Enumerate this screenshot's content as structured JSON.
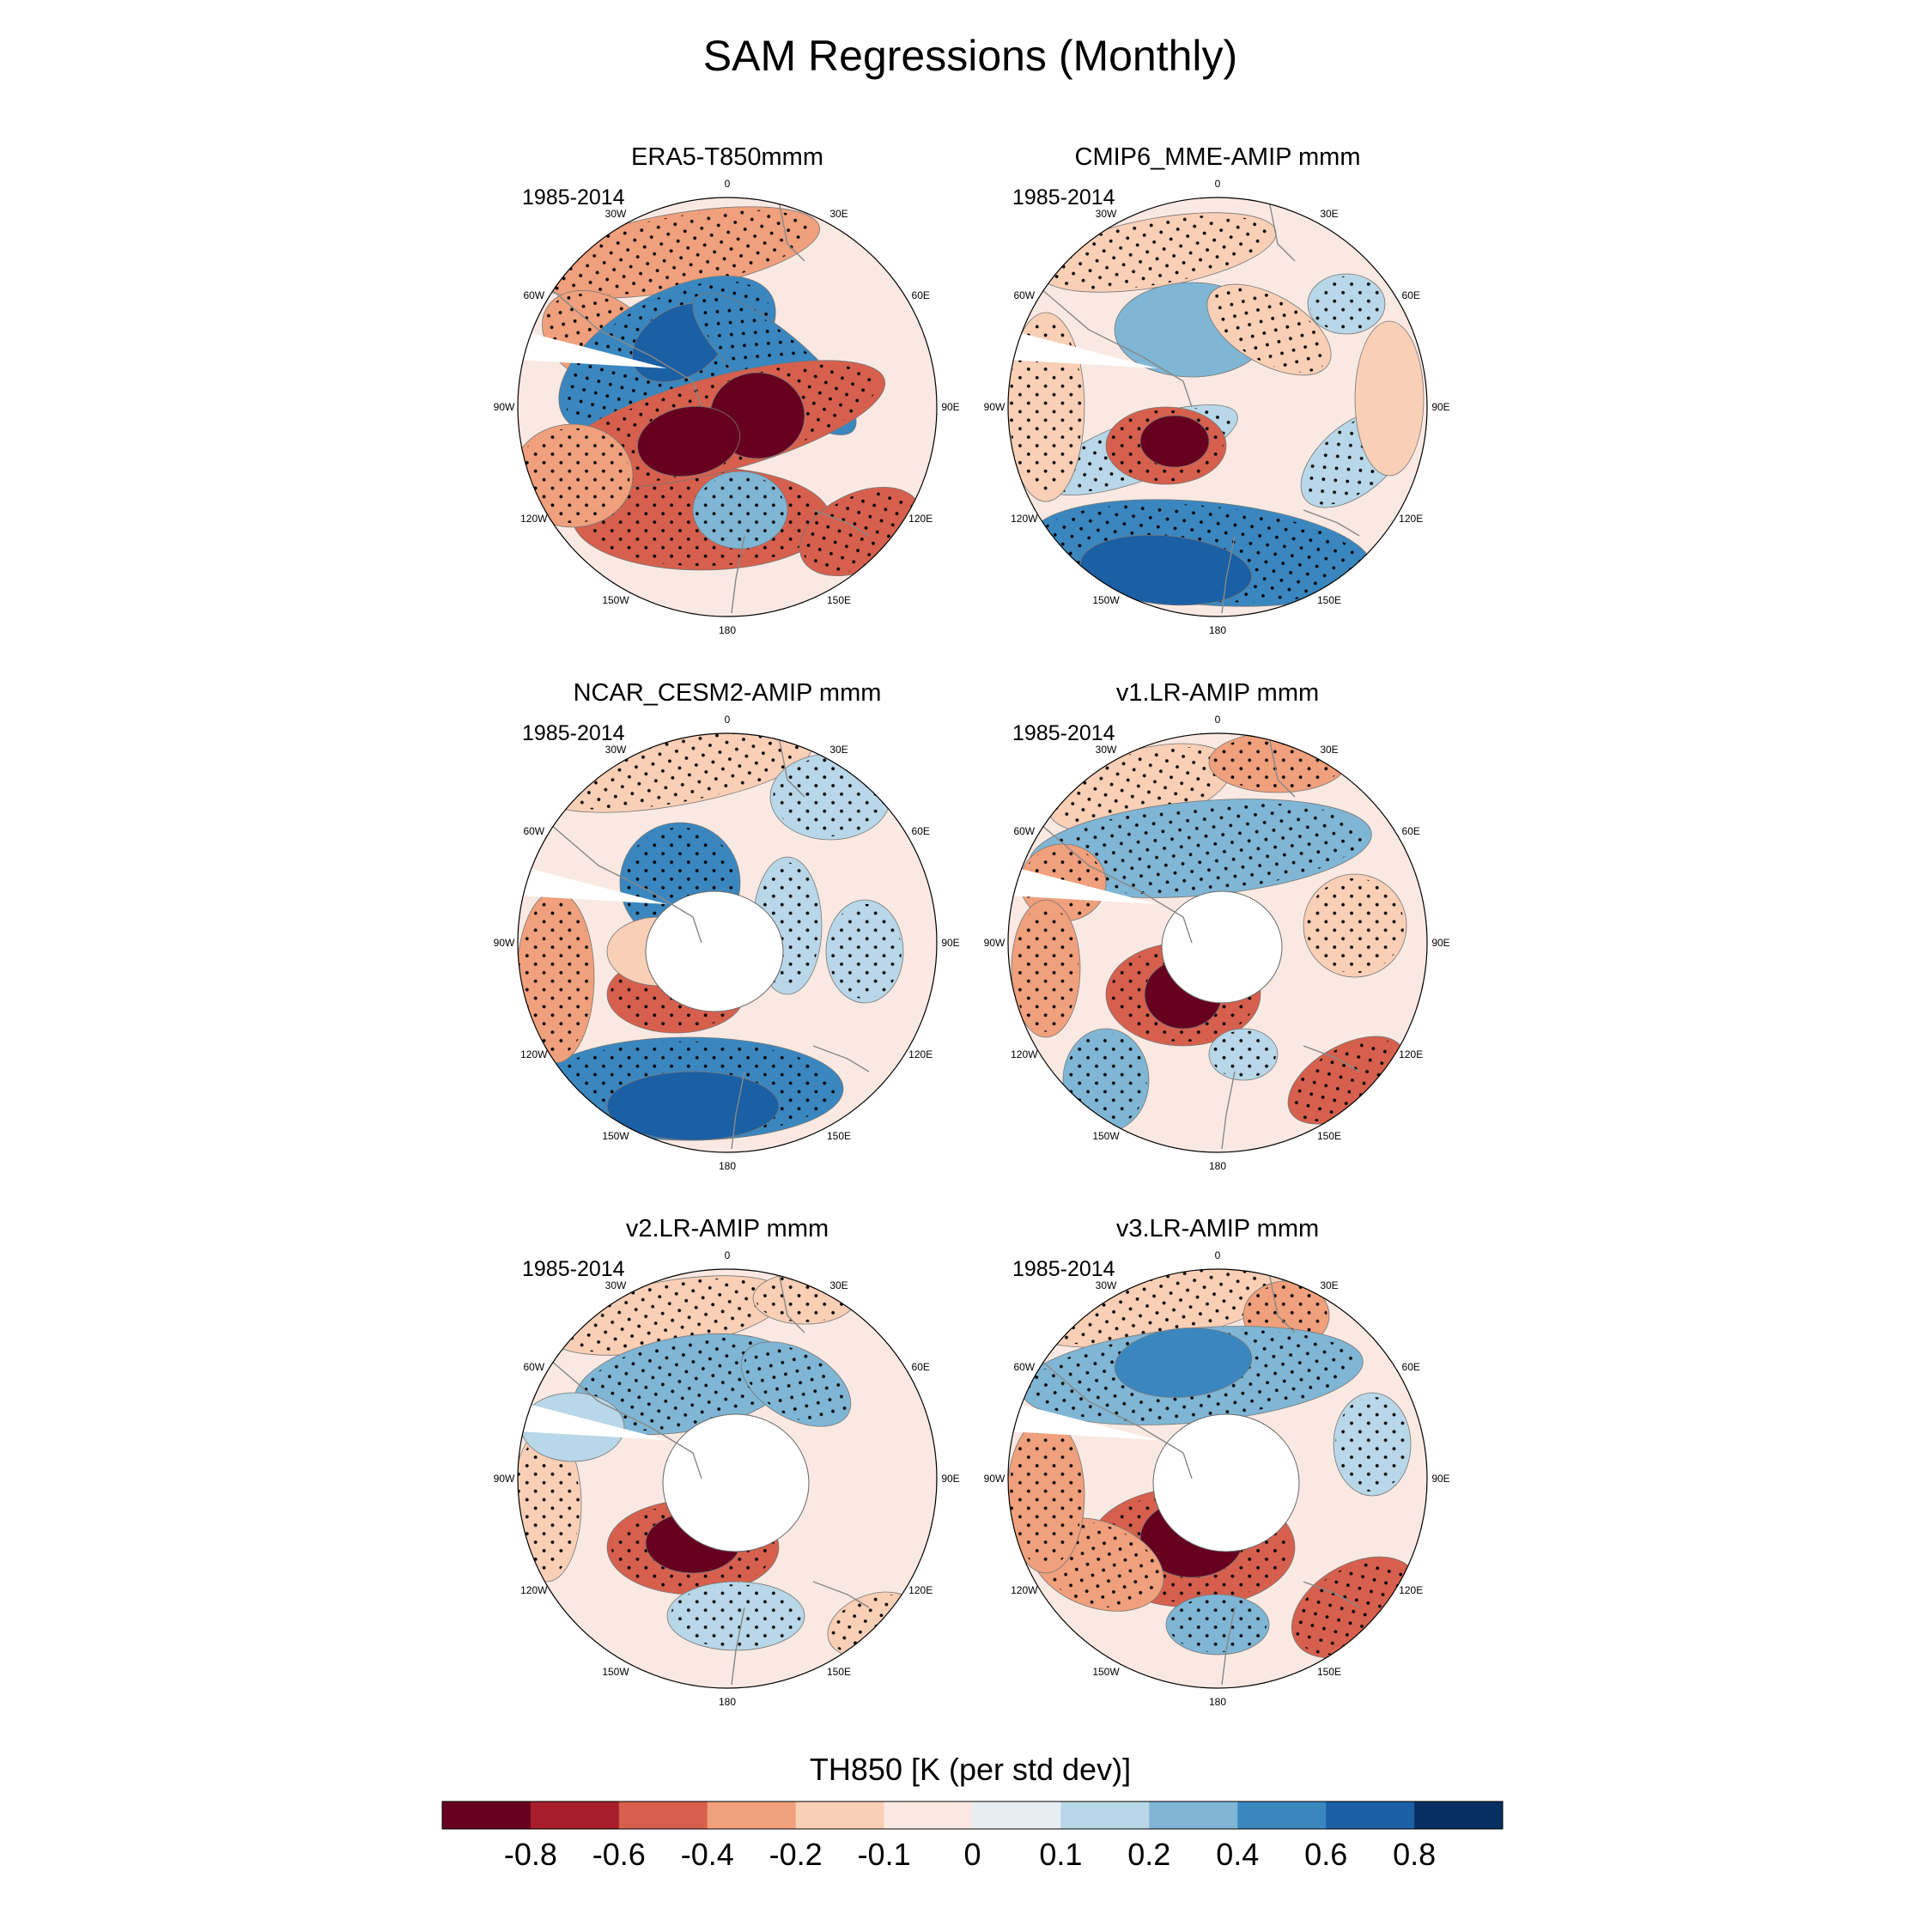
{
  "figure": {
    "title": "SAM Regressions (Monthly)",
    "colorbar": {
      "title": "TH850 [K (per std dev)]",
      "colors": [
        "#67001f",
        "#a91d2b",
        "#d6604d",
        "#f0a07c",
        "#f9cfb6",
        "#fae9e2",
        "#e6eef3",
        "#b8d7e8",
        "#7fb6d5",
        "#3a87c0",
        "#1b5fa4",
        "#053061"
      ],
      "ticks": [
        "-0.8",
        "-0.6",
        "-0.4",
        "-0.2",
        "-0.1",
        "0",
        "0.1",
        "0.2",
        "0.4",
        "0.6",
        "0.8"
      ]
    },
    "lon_labels": [
      "0",
      "30E",
      "60E",
      "90E",
      "120E",
      "150E",
      "180",
      "150W",
      "120W",
      "90W",
      "60W",
      "30W"
    ],
    "panels": [
      {
        "title": "ERA5-T850mmm",
        "period": "1985-2014"
      },
      {
        "title": "CMIP6_MME-AMIP  mmm",
        "period": "1985-2014"
      },
      {
        "title": "NCAR_CESM2-AMIP  mmm",
        "period": "1985-2014"
      },
      {
        "title": "v1.LR-AMIP  mmm",
        "period": "1985-2014"
      },
      {
        "title": "v2.LR-AMIP  mmm",
        "period": "1985-2014"
      },
      {
        "title": "v3.LR-AMIP  mmm",
        "period": "1985-2014"
      }
    ]
  },
  "chart_data": {
    "type": "heatmap",
    "projection": "south-polar-stereographic",
    "title": "SAM Regressions (Monthly)",
    "variable": "TH850 [K (per std dev)]",
    "contour_levels": [
      -0.8,
      -0.6,
      -0.4,
      -0.2,
      -0.1,
      0,
      0.1,
      0.2,
      0.4,
      0.6,
      0.8
    ],
    "panels": [
      {
        "name": "ERA5-T850mmm",
        "period": "1985-2014"
      },
      {
        "name": "CMIP6_MME-AMIP  mmm",
        "period": "1985-2014"
      },
      {
        "name": "NCAR_CESM2-AMIP  mmm",
        "period": "1985-2014"
      },
      {
        "name": "v1.LR-AMIP  mmm",
        "period": "1985-2014"
      },
      {
        "name": "v2.LR-AMIP  mmm",
        "period": "1985-2014"
      },
      {
        "name": "v3.LR-AMIP  mmm",
        "period": "1985-2014"
      }
    ]
  }
}
